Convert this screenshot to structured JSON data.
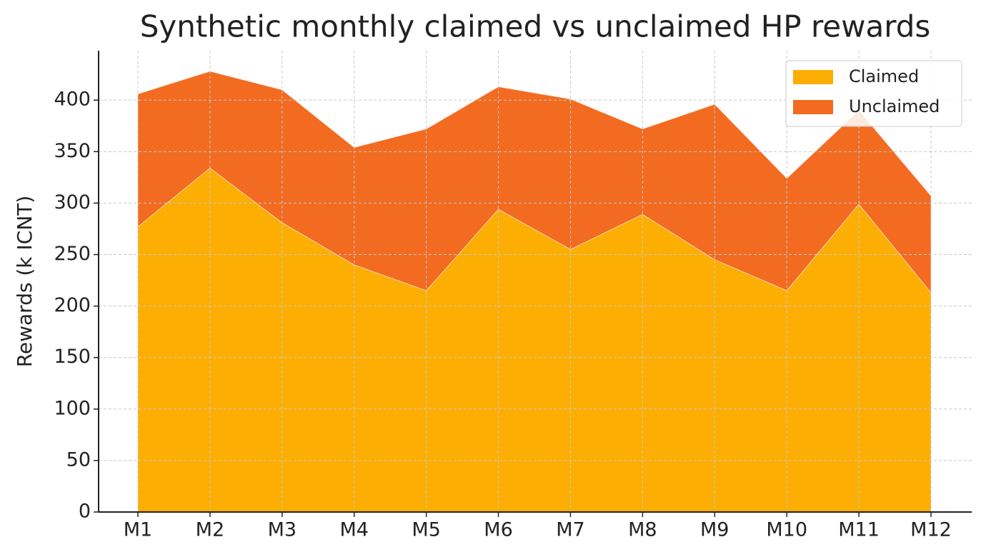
{
  "chart_data": {
    "type": "stacked_area",
    "title": "Synthetic monthly claimed vs unclaimed HP rewards",
    "y_label": "Rewards (k ICNT)",
    "categories": [
      "M1",
      "M2",
      "M3",
      "M4",
      "M5",
      "M6",
      "M7",
      "M8",
      "M9",
      "M10",
      "M11",
      "M12"
    ],
    "series": [
      {
        "name": "Claimed",
        "color": "#fdae03",
        "values": [
          277,
          334,
          281,
          240,
          215,
          294,
          255,
          289,
          245,
          215,
          299,
          213
        ]
      },
      {
        "name": "Unclaimed",
        "color": "#f26b21",
        "values": [
          129,
          94,
          129,
          114,
          157,
          119,
          146,
          83,
          151,
          109,
          91,
          94
        ]
      }
    ],
    "ylim": [
      0,
      448
    ],
    "yticks": [
      0,
      50,
      100,
      150,
      200,
      250,
      300,
      350,
      400
    ],
    "grid": true,
    "legend": "upper right"
  }
}
